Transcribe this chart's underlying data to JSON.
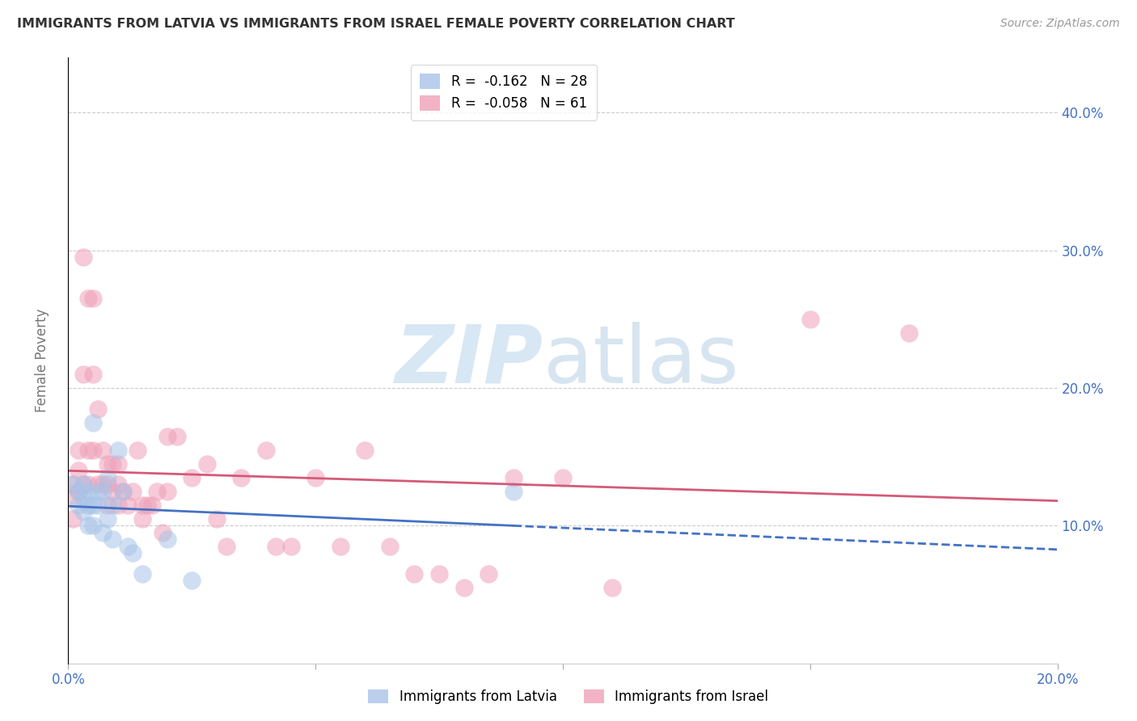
{
  "title": "IMMIGRANTS FROM LATVIA VS IMMIGRANTS FROM ISRAEL FEMALE POVERTY CORRELATION CHART",
  "source_text": "Source: ZipAtlas.com",
  "ylabel": "Female Poverty",
  "xlim": [
    0.0,
    0.2
  ],
  "ylim": [
    0.0,
    0.44
  ],
  "legend_r_latvia": "-0.162",
  "legend_n_latvia": "28",
  "legend_r_israel": "-0.058",
  "legend_n_israel": "61",
  "latvia_color": "#a8c4e8",
  "israel_color": "#f0a0b8",
  "latvia_line_color": "#4472c4",
  "israel_line_color": "#d45a78",
  "latvia_x": [
    0.001,
    0.002,
    0.002,
    0.003,
    0.003,
    0.003,
    0.004,
    0.004,
    0.004,
    0.005,
    0.005,
    0.005,
    0.006,
    0.006,
    0.007,
    0.007,
    0.008,
    0.008,
    0.009,
    0.009,
    0.01,
    0.011,
    0.012,
    0.013,
    0.015,
    0.02,
    0.025,
    0.09
  ],
  "latvia_y": [
    0.13,
    0.125,
    0.115,
    0.13,
    0.12,
    0.11,
    0.125,
    0.115,
    0.1,
    0.175,
    0.115,
    0.1,
    0.125,
    0.115,
    0.125,
    0.095,
    0.135,
    0.105,
    0.115,
    0.09,
    0.155,
    0.125,
    0.085,
    0.08,
    0.065,
    0.09,
    0.06,
    0.125
  ],
  "israel_x": [
    0.001,
    0.001,
    0.001,
    0.002,
    0.002,
    0.002,
    0.003,
    0.003,
    0.003,
    0.004,
    0.004,
    0.004,
    0.005,
    0.005,
    0.005,
    0.006,
    0.006,
    0.007,
    0.007,
    0.008,
    0.008,
    0.008,
    0.009,
    0.009,
    0.01,
    0.01,
    0.01,
    0.011,
    0.012,
    0.013,
    0.014,
    0.015,
    0.015,
    0.016,
    0.017,
    0.018,
    0.019,
    0.02,
    0.02,
    0.022,
    0.025,
    0.028,
    0.03,
    0.032,
    0.035,
    0.04,
    0.042,
    0.045,
    0.05,
    0.055,
    0.06,
    0.065,
    0.07,
    0.075,
    0.08,
    0.085,
    0.09,
    0.1,
    0.11,
    0.15,
    0.17
  ],
  "israel_y": [
    0.13,
    0.12,
    0.105,
    0.155,
    0.14,
    0.125,
    0.295,
    0.21,
    0.13,
    0.265,
    0.155,
    0.13,
    0.265,
    0.21,
    0.155,
    0.185,
    0.13,
    0.155,
    0.13,
    0.145,
    0.13,
    0.115,
    0.145,
    0.125,
    0.145,
    0.13,
    0.115,
    0.125,
    0.115,
    0.125,
    0.155,
    0.115,
    0.105,
    0.115,
    0.115,
    0.125,
    0.095,
    0.165,
    0.125,
    0.165,
    0.135,
    0.145,
    0.105,
    0.085,
    0.135,
    0.155,
    0.085,
    0.085,
    0.135,
    0.085,
    0.155,
    0.085,
    0.065,
    0.065,
    0.055,
    0.065,
    0.135,
    0.135,
    0.055,
    0.25,
    0.24
  ]
}
